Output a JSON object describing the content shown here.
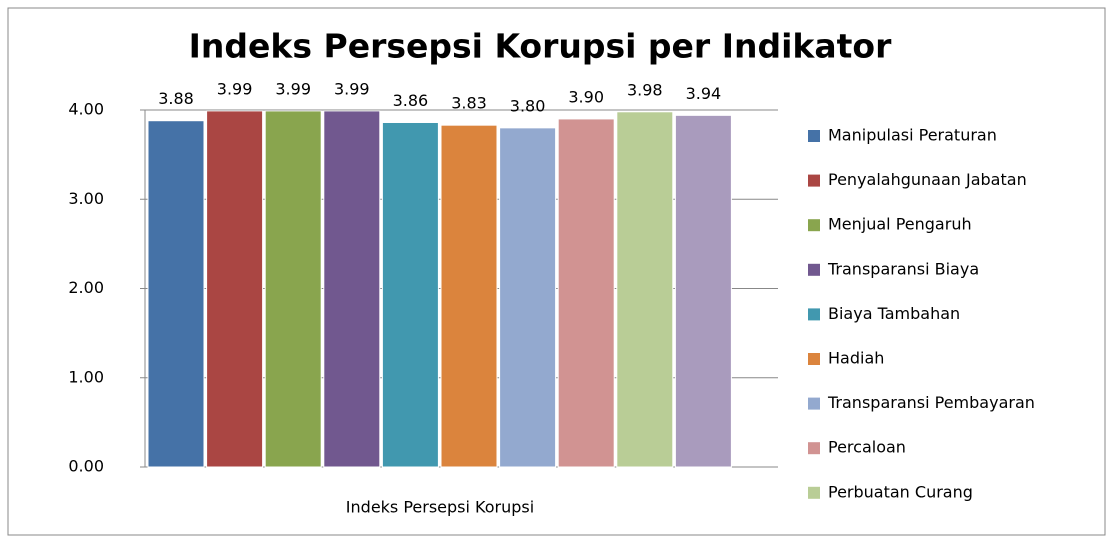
{
  "chart_data": {
    "type": "bar",
    "title": "Indeks Persepsi Korupsi per Indikator",
    "categories": [
      "Indeks Persepsi Korupsi"
    ],
    "series": [
      {
        "name": "Manipulasi Peraturan",
        "color": "#4572a7",
        "values": [
          3.88
        ],
        "value_labels": [
          "3.88"
        ]
      },
      {
        "name": "Penyalahgunaan Jabatan",
        "color": "#aa4643",
        "values": [
          3.99
        ],
        "value_labels": [
          "3.99"
        ]
      },
      {
        "name": "Menjual Pengaruh",
        "color": "#89a54e",
        "values": [
          3.99
        ],
        "value_labels": [
          "3.99"
        ]
      },
      {
        "name": "Transparansi Biaya",
        "color": "#71588f",
        "values": [
          3.99
        ],
        "value_labels": [
          "3.99"
        ]
      },
      {
        "name": "Biaya Tambahan",
        "color": "#4198af",
        "values": [
          3.86
        ],
        "value_labels": [
          "3.86"
        ]
      },
      {
        "name": "Hadiah",
        "color": "#db843d",
        "values": [
          3.83
        ],
        "value_labels": [
          "3.83"
        ]
      },
      {
        "name": "Transparansi Pembayaran",
        "color": "#93a9cf",
        "values": [
          3.8
        ],
        "value_labels": [
          "3.80"
        ]
      },
      {
        "name": "Percaloan",
        "color": "#d19392",
        "values": [
          3.9
        ],
        "value_labels": [
          "3.90"
        ]
      },
      {
        "name": "Perbuatan Curang",
        "color": "#b9cd96",
        "values": [
          3.98
        ],
        "value_labels": [
          "3.98"
        ]
      },
      {
        "name": null,
        "color": "#a99bbd",
        "values": [
          3.94
        ],
        "value_labels": [
          "3.94"
        ]
      }
    ],
    "ylim": [
      0,
      4
    ],
    "yticks": [
      {
        "value": 0,
        "label": "0.00"
      },
      {
        "value": 1,
        "label": "1.00"
      },
      {
        "value": 2,
        "label": "2.00"
      },
      {
        "value": 3,
        "label": "3.00"
      },
      {
        "value": 4,
        "label": "4.00"
      }
    ],
    "grid": true,
    "legend": "right"
  }
}
